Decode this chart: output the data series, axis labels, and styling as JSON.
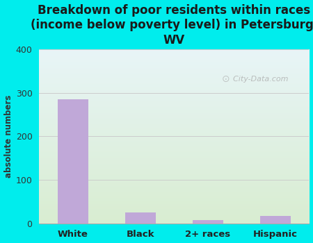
{
  "title": "Breakdown of poor residents within races\n(income below poverty level) in Petersburg,\nWV",
  "categories": [
    "White",
    "Black",
    "2+ races",
    "Hispanic"
  ],
  "values": [
    285,
    25,
    8,
    17
  ],
  "bar_color": "#c0a8d8",
  "ylabel": "absolute numbers",
  "ylim": [
    0,
    400
  ],
  "yticks": [
    0,
    100,
    200,
    300,
    400
  ],
  "background_outer": "#00eded",
  "title_fontsize": 12,
  "title_color": "#1a1a1a",
  "axis_color": "#333333",
  "watermark": "City-Data.com",
  "grid_color": "#cccccc"
}
